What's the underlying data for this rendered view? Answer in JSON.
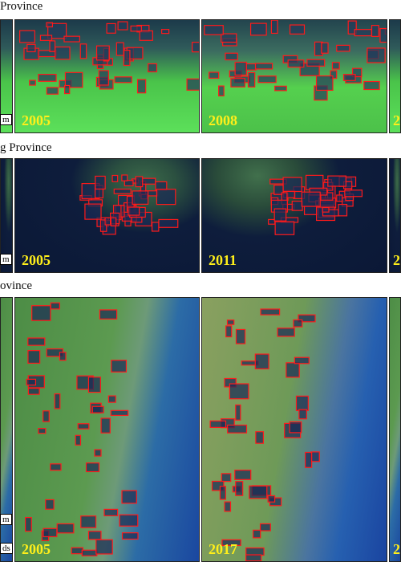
{
  "rows": [
    {
      "title": "Province",
      "scale_labels": [
        "m"
      ],
      "panels": [
        "2005",
        "2008",
        "2"
      ]
    },
    {
      "title": "g Province",
      "scale_labels": [
        "m"
      ],
      "panels": [
        "2005",
        "2011",
        "2"
      ]
    },
    {
      "title": "ovince",
      "scale_labels": [
        "m",
        "ds"
      ],
      "panels": [
        "2005",
        "2017",
        "2"
      ]
    }
  ]
}
